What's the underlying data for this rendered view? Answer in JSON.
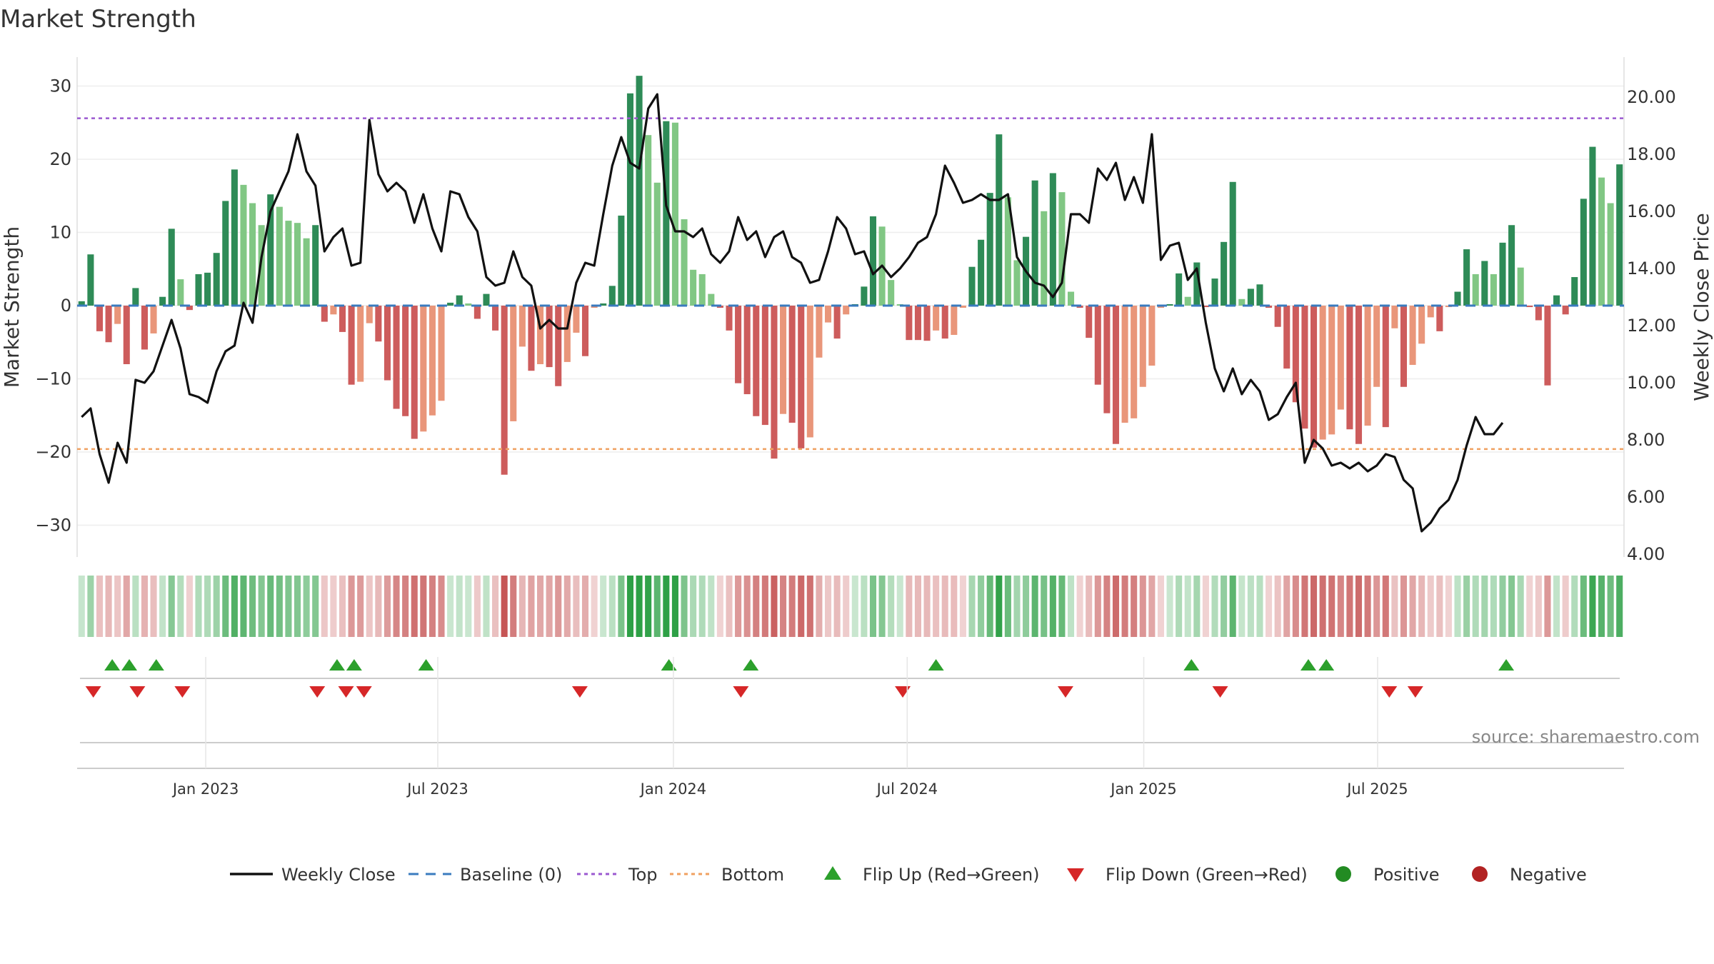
{
  "chart_data": {
    "type": "bar+line",
    "title": "Market Strength",
    "ylabel_left": "Market Strength",
    "ylabel_right": "Weekly Close Price",
    "ylim_left": [
      -34,
      35
    ],
    "ylim_right": [
      4,
      21
    ],
    "yticks_left": [
      30,
      20,
      10,
      0,
      -10,
      -20,
      -30
    ],
    "yticks_left_labels": [
      "30",
      "20",
      "10",
      "0",
      "−10",
      "−20",
      "−30"
    ],
    "yticks_right": [
      20,
      18,
      16,
      14,
      12,
      10,
      8,
      6,
      4
    ],
    "yticks_right_labels": [
      "20.00",
      "18.00",
      "16.00",
      "14.00",
      "12.00",
      "10.00",
      "8.00",
      "6.00",
      "4.00"
    ],
    "x_tick_labels": [
      "Jan 2023",
      "Jul 2023",
      "Jan 2024",
      "Jul 2024",
      "Jan 2025",
      "Jul 2025"
    ],
    "x_tick_weeks": [
      14.3,
      40.1,
      66.3,
      92.3,
      118.6,
      144.6
    ],
    "top_line": 25.6,
    "bottom_line": -19.6,
    "baseline": 0,
    "strength": [
      0.6,
      7,
      -3.5,
      -5,
      -2.5,
      -8,
      2.4,
      -6,
      -3.8,
      1.2,
      10.5,
      3.6,
      -0.6,
      4.3,
      4.5,
      7.2,
      14.3,
      18.6,
      16.5,
      14,
      11,
      15.2,
      13.5,
      11.6,
      11.3,
      9.2,
      11,
      -2.2,
      -1.2,
      -3.6,
      -10.8,
      -10.4,
      -2.4,
      -4.9,
      -10.2,
      -14.1,
      -15.1,
      -18.2,
      -17.2,
      -15,
      -13,
      0.4,
      1.4,
      0.3,
      -1.8,
      1.6,
      -3.4,
      -23.1,
      -15.8,
      -5.6,
      -8.9,
      -8,
      -8.4,
      -11,
      -7.7,
      -3.7,
      -6.9,
      -0.3,
      0.3,
      2.7,
      12.3,
      29,
      31.4,
      23.3,
      16.8,
      25.2,
      25,
      11.8,
      4.9,
      4.3,
      1.6,
      -0.3,
      -3.4,
      -10.6,
      -12.1,
      -15.1,
      -16.3,
      -20.9,
      -14.8,
      -16,
      -19.5,
      -18,
      -7.1,
      -2.3,
      -4.5,
      -1.2,
      0.2,
      2.6,
      12.2,
      10.8,
      3.5,
      0.2,
      -4.7,
      -4.7,
      -4.8,
      -3.4,
      -4.5,
      -4,
      -0.3,
      5.3,
      9,
      15.4,
      23.4,
      14.8,
      6.2,
      9.4,
      17.1,
      12.9,
      18.1,
      15.5,
      1.9,
      -0.3,
      -4.4,
      -10.8,
      -14.7,
      -18.9,
      -16,
      -15.4,
      -11.1,
      -8.2,
      -0.3,
      0.2,
      4.4,
      1.2,
      5.9,
      -0.2,
      3.7,
      8.7,
      16.9,
      0.9,
      2.3,
      2.9,
      -0.3,
      -2.9,
      -8.6,
      -13.2,
      -16.8,
      -19.4,
      -18.3,
      -17.6,
      -14.2,
      -16.9,
      -18.9,
      -16.4,
      -11.1,
      -16.6,
      -3.1,
      -11.1,
      -8.1,
      -5.2,
      -1.6,
      -3.5,
      -0.2,
      1.9,
      7.7,
      4.3,
      6.1,
      4.3,
      8.6,
      11,
      5.2,
      -0.2,
      -2,
      -10.9,
      1.4,
      -1.2,
      3.9,
      14.6,
      21.7,
      17.5,
      14,
      19.3
    ],
    "weekly_close": [
      8.8,
      9.1,
      7.5,
      6.5,
      7.9,
      7.2,
      10.1,
      10,
      10.4,
      11.3,
      12.2,
      11.2,
      9.6,
      9.5,
      9.3,
      10.4,
      11.1,
      11.3,
      12.8,
      12.1,
      14.4,
      16,
      16.7,
      17.4,
      18.7,
      17.4,
      16.9,
      14.6,
      15.1,
      15.4,
      14.1,
      14.2,
      19.2,
      17.3,
      16.7,
      17,
      16.7,
      15.6,
      16.6,
      15.4,
      14.6,
      16.7,
      16.6,
      15.8,
      15.3,
      13.7,
      13.4,
      13.5,
      14.6,
      13.7,
      13.4,
      11.9,
      12.2,
      11.9,
      11.9,
      13.5,
      14.2,
      14.1,
      15.9,
      17.6,
      18.6,
      17.7,
      17.5,
      19.6,
      20.1,
      16.2,
      15.3,
      15.3,
      15.1,
      15.4,
      14.5,
      14.2,
      14.6,
      15.8,
      15,
      15.3,
      14.4,
      15.1,
      15.3,
      14.4,
      14.2,
      13.5,
      13.6,
      14.6,
      15.8,
      15.4,
      14.5,
      14.6,
      13.8,
      14.1,
      13.7,
      14,
      14.4,
      14.9,
      15.1,
      15.9,
      17.6,
      17,
      16.3,
      16.4,
      16.6,
      16.4,
      16.4,
      16.6,
      14.4,
      13.9,
      13.5,
      13.4,
      13,
      13.5,
      15.9,
      15.9,
      15.6,
      17.5,
      17.1,
      17.7,
      16.4,
      17.2,
      16.3,
      18.7,
      14.3,
      14.8,
      14.9,
      13.6,
      14,
      12.1,
      10.5,
      9.7,
      10.5,
      9.6,
      10.1,
      9.7,
      8.7,
      8.9,
      9.5,
      10,
      7.2,
      8.0,
      7.7,
      7.1,
      7.2,
      7.0,
      7.2,
      6.9,
      7.1,
      7.5,
      7.4,
      6.6,
      6.3,
      4.8,
      5.1,
      5.6,
      5.9,
      6.6,
      7.8,
      8.8,
      8.2,
      8.2,
      8.6
    ],
    "flip_up": [
      3.4,
      5.3,
      8.3,
      28.4,
      30.3,
      38.3,
      65.3,
      74.4,
      95,
      123.4,
      136.4,
      138.4,
      158.4
    ],
    "flip_down": [
      1.3,
      6.2,
      11.2,
      26.2,
      29.4,
      31.4,
      55.4,
      73.3,
      91.3,
      109.4,
      126.6,
      145.4,
      148.3
    ],
    "legend": [
      {
        "label": "Weekly Close",
        "kind": "line-solid",
        "color": "#111111"
      },
      {
        "label": "Baseline (0)",
        "kind": "line-dash",
        "color": "#3a7bbf"
      },
      {
        "label": "Top",
        "kind": "line-dot",
        "color": "#9b59d0"
      },
      {
        "label": "Bottom",
        "kind": "line-dot",
        "color": "#f0a060"
      },
      {
        "label": "Flip Up (Red→Green)",
        "kind": "tri-up",
        "color": "#2ca02c"
      },
      {
        "label": "Flip Down (Green→Red)",
        "kind": "tri-down",
        "color": "#d62728"
      },
      {
        "label": "Positive",
        "kind": "dot",
        "color": "#228b22"
      },
      {
        "label": "Negative",
        "kind": "dot",
        "color": "#b22222"
      }
    ],
    "source": "source: sharemaestro.com",
    "colors": {
      "pos_dark": "#2e8b57",
      "pos_light": "#81c784",
      "neg_dark": "#cd5c5c",
      "neg_light": "#e9967a",
      "line": "#111111",
      "baseline": "#3a7bbf",
      "top": "#9b59d0",
      "bottom": "#f0a060",
      "flip_up": "#2ca02c",
      "flip_down": "#d62728"
    }
  }
}
